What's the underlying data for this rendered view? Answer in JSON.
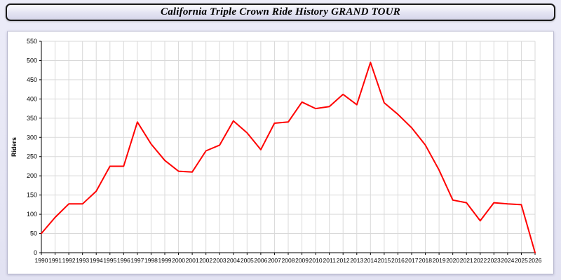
{
  "header": {
    "title": "California Triple Crown Ride History GRAND TOUR"
  },
  "chart_data": {
    "type": "line",
    "title": "California Triple Crown Ride History GRAND TOUR",
    "xlabel": "",
    "ylabel": "Riders",
    "ylim": [
      0,
      550
    ],
    "ytick_step": 50,
    "grid": true,
    "legend": "none",
    "x": [
      1990,
      1991,
      1992,
      1993,
      1994,
      1995,
      1996,
      1997,
      1998,
      1999,
      2000,
      2001,
      2002,
      2003,
      2004,
      2005,
      2006,
      2007,
      2008,
      2009,
      2010,
      2011,
      2012,
      2013,
      2014,
      2015,
      2016,
      2017,
      2018,
      2019,
      2020,
      2021,
      2022,
      2023,
      2024,
      2025,
      2026
    ],
    "series": [
      {
        "name": "Riders",
        "color": "#ff0000",
        "values": [
          50,
          92,
          127,
          127,
          160,
          225,
          225,
          340,
          283,
          240,
          212,
          210,
          265,
          280,
          343,
          312,
          268,
          337,
          340,
          392,
          375,
          380,
          412,
          385,
          495,
          390,
          360,
          325,
          280,
          215,
          137,
          130,
          83,
          130,
          127,
          125,
          0
        ]
      }
    ],
    "colors": {
      "line": "#ff0000",
      "grid": "#d9d9d9",
      "axis": "#000000",
      "plot_background": "#ffffff",
      "page_background": "#e7e7f5"
    }
  }
}
